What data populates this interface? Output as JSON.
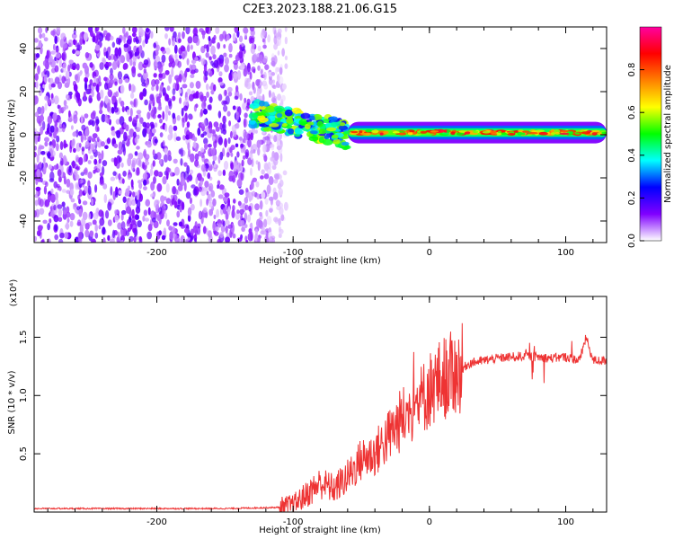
{
  "figure": {
    "title": "C2E3.2023.188.21.06.G15"
  },
  "colors": {
    "signal": "#ee3333",
    "axis": "#000000",
    "background": "#ffffff"
  },
  "chart_data": [
    {
      "type": "heatmap",
      "title": "C2E3.2023.188.21.06.G15",
      "xlabel": "Height of straight line (km)",
      "ylabel": "Frequency (Hz)",
      "xlim": [
        -290,
        130
      ],
      "ylim": [
        -50,
        50
      ],
      "x_ticks": [
        -200,
        -100,
        0,
        100
      ],
      "x_tick_labels": [
        "-200",
        "-100",
        "0",
        "100"
      ],
      "y_ticks": [
        -40,
        -20,
        0,
        20,
        40
      ],
      "y_tick_labels": [
        "-40",
        "-20",
        "0",
        "20",
        "40"
      ],
      "colorbar": {
        "label": "Normalized spectral amplitude",
        "range": [
          0,
          1
        ],
        "ticks": [
          0.0,
          0.2,
          0.4,
          0.6,
          0.8
        ],
        "tick_labels": [
          "0.0",
          "0.2",
          "0.4",
          "0.6",
          "0.8"
        ],
        "colors": [
          "#ffffff",
          "#8000ff",
          "#0000ff",
          "#00ffff",
          "#00ff00",
          "#ffff00",
          "#ff8000",
          "#ff0000",
          "#ff00a0"
        ]
      },
      "regions": [
        {
          "name": "noise",
          "x_range": [
            -290,
            -115
          ],
          "freq_range": [
            -50,
            50
          ],
          "amplitude": 0.15
        },
        {
          "name": "onset",
          "x_range": [
            -130,
            -60
          ],
          "freq_center": [
            10,
            0
          ],
          "amplitude": 0.45
        },
        {
          "name": "tracking",
          "x_range": [
            -60,
            130
          ],
          "freq_center": 1,
          "amplitude": 0.9
        }
      ]
    },
    {
      "type": "line",
      "xlabel": "Height of straight line (km)",
      "ylabel": "SNR (10 * v/v)",
      "y_multiplier": "(x10⁴)",
      "xlim": [
        -290,
        130
      ],
      "ylim": [
        0,
        1.85
      ],
      "x_ticks": [
        -200,
        -100,
        0,
        100
      ],
      "x_tick_labels": [
        "-200",
        "-100",
        "0",
        "100"
      ],
      "y_ticks": [
        0.5,
        1.0,
        1.5
      ],
      "y_tick_labels": [
        "0.5",
        "1.0",
        "1.5"
      ],
      "series": [
        {
          "color": "#ee3333",
          "x": [
            -290,
            -250,
            -200,
            -150,
            -110,
            -100,
            -90,
            -80,
            -70,
            -60,
            -50,
            -40,
            -30,
            -20,
            -10,
            0,
            10,
            20,
            30,
            40,
            50,
            60,
            70,
            80,
            90,
            100,
            110,
            115,
            120,
            130
          ],
          "y": [
            0.03,
            0.03,
            0.03,
            0.03,
            0.04,
            0.06,
            0.15,
            0.25,
            0.2,
            0.3,
            0.45,
            0.5,
            0.65,
            0.8,
            0.9,
            1.05,
            1.15,
            1.2,
            1.28,
            1.3,
            1.32,
            1.33,
            1.34,
            1.33,
            1.32,
            1.33,
            1.3,
            1.5,
            1.3,
            1.3
          ]
        }
      ]
    }
  ]
}
